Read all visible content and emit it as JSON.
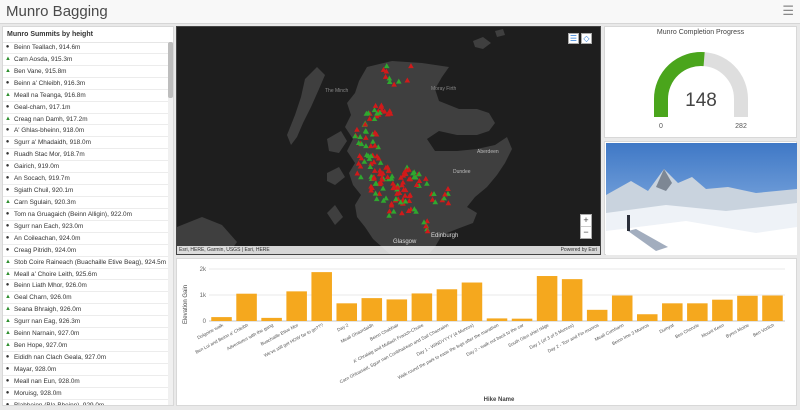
{
  "header": {
    "title": "Munro Bagging",
    "menu_icon": "hamburger-icon"
  },
  "list": {
    "title": "Munro Summits by height",
    "items": [
      {
        "label": "Beinn Teallach, 914.6m",
        "marker": "dot"
      },
      {
        "label": "Carn Aosda, 915.3m",
        "marker": "tri"
      },
      {
        "label": "Ben Vane, 915.8m",
        "marker": "tri"
      },
      {
        "label": "Beinn a' Chleibh, 916.3m",
        "marker": "dot"
      },
      {
        "label": "Meall na Teanga, 916.8m",
        "marker": "tri"
      },
      {
        "label": "Geal-charn, 917.1m",
        "marker": "dot"
      },
      {
        "label": "Creag nan Damh, 917.2m",
        "marker": "tri"
      },
      {
        "label": "A' Ghlas-bheinn, 918.0m",
        "marker": "dot"
      },
      {
        "label": "Sgurr a' Mhadaidh, 918.0m",
        "marker": "dot"
      },
      {
        "label": "Ruadh Stac Mor, 918.7m",
        "marker": "dot"
      },
      {
        "label": "Gairich, 919.0m",
        "marker": "dot"
      },
      {
        "label": "An Socach, 919.7m",
        "marker": "dot"
      },
      {
        "label": "Sgiath Chuil, 920.1m",
        "marker": "dot"
      },
      {
        "label": "Carn Sgulain, 920.3m",
        "marker": "tri"
      },
      {
        "label": "Tom na Gruagaich (Beinn Alligin), 922.0m",
        "marker": "dot"
      },
      {
        "label": "Sgurr nan Each, 923.0m",
        "marker": "dot"
      },
      {
        "label": "An Coileachan, 924.0m",
        "marker": "dot"
      },
      {
        "label": "Creag Pitridh, 924.0m",
        "marker": "dot"
      },
      {
        "label": "Stob Coire Raineach (Buachaille Etive Beag), 924.5m",
        "marker": "tri"
      },
      {
        "label": "Meall a' Choire Leith, 925.6m",
        "marker": "tri"
      },
      {
        "label": "Beinn Liath Mhor, 926.0m",
        "marker": "dot"
      },
      {
        "label": "Geal Charn, 926.0m",
        "marker": "tri"
      },
      {
        "label": "Seana Bhraigh, 926.0m",
        "marker": "tri"
      },
      {
        "label": "Sgurr nan Eag, 926.3m",
        "marker": "tri"
      },
      {
        "label": "Beinn Narnain, 927.0m",
        "marker": "tri"
      },
      {
        "label": "Ben Hope, 927.0m",
        "marker": "tri"
      },
      {
        "label": "Eididh nan Clach Geala, 927.0m",
        "marker": "dot"
      },
      {
        "label": "Mayar, 928.0m",
        "marker": "dot"
      },
      {
        "label": "Meall nan Eun, 928.0m",
        "marker": "dot"
      },
      {
        "label": "Moruisg, 928.0m",
        "marker": "dot"
      },
      {
        "label": "Blabheinn (Bla Bheinn), 929.0m",
        "marker": "dot"
      }
    ]
  },
  "map": {
    "labels": {
      "minch": "The Minch",
      "moray": "Moray Firth",
      "aberdeen": "Aberdeen",
      "dundee": "Dundee",
      "glasgow": "Glasgow",
      "edinburgh": "Edinburgh"
    },
    "attribution": "Esri, HERE, Garmin, USGS | Esri, HERE",
    "powered": "Powered by Esri",
    "zoom_in": "+",
    "zoom_out": "−",
    "colors": {
      "completed": "#2fa82f",
      "not_completed": "#d11a1a",
      "land": "#3f3f3f",
      "sea": "#1e1e1e"
    }
  },
  "gauge": {
    "title": "Munro Completion Progress",
    "value": 148,
    "min": 0,
    "max": 282,
    "value_text": "148",
    "min_text": "0",
    "max_text": "282",
    "fill_color": "#4aa51c",
    "track_color": "#dedede"
  },
  "chart_data": {
    "type": "bar",
    "xlabel": "Hike Name",
    "ylabel": "Elevation Gain",
    "ylim": [
      0,
      2000
    ],
    "yticks": [
      "0",
      "1k",
      "2k"
    ],
    "bar_color": "#f5a81e",
    "categories": [
      "Dolgoine walk",
      "Ben Lui and Beinn a' Chleibh",
      "Adventures with the gang",
      "Buachaille Etive Mor",
      "We've still got HOW far to go???",
      "Day 2",
      "Meall Ghaordaidh",
      "Beinn Chabhair",
      "A' Chralaig and Mullach Fraoch-Choire",
      "Carn Ghluasaid, Sgurr nan Conbhairean and Sail Chaorainn",
      "Day 1 - WINDYYYY (4 Munros)",
      "Walk round the park to ease the legs after the marathon",
      "Day 2 - walk out back to the car",
      "South Glen shiel ridge",
      "Day 1 (of 3 of 5 Munros)",
      "Day 2 - Torr and Fin munros",
      "Meall Cumhann",
      "Beinn Ime 3 Munros",
      "Dumyat",
      "Ben Chonzie",
      "Mount Keen",
      "Byres Moine",
      "Ben Vorlich"
    ],
    "values": [
      150,
      1050,
      120,
      1140,
      1880,
      680,
      880,
      830,
      1060,
      1220,
      1480,
      100,
      90,
      1730,
      1610,
      430,
      980,
      260,
      680,
      680,
      820,
      970,
      980
    ]
  }
}
